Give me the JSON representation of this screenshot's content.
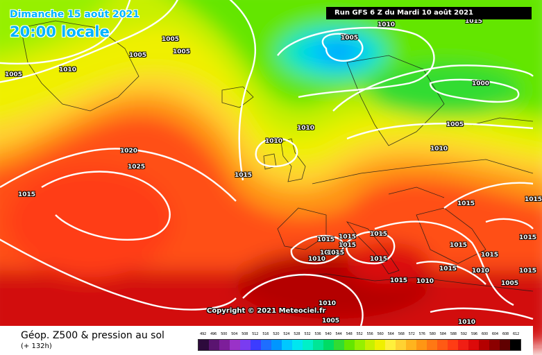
{
  "header": {
    "date": "Dimanche 15 août 2021",
    "time": "20:00 locale",
    "run": "Run GFS 6 Z du Mardi 10 août 2021"
  },
  "copyright": "Copyright © 2021 Meteociel.fr",
  "footer": {
    "title": "Géop. Z500 & pression au sol",
    "subtitle": "(+ 132h)"
  },
  "isobar_labels": [
    "1010",
    "1015",
    "1005",
    "1005",
    "1005",
    "1005",
    "1010",
    "1005",
    "1010",
    "1000",
    "1010",
    "1005",
    "1015",
    "1020",
    "1025",
    "1010",
    "1015",
    "1015",
    "1015",
    "1015",
    "1015",
    "1015",
    "1015",
    "1015",
    "1015",
    "1015",
    "1010",
    "1015",
    "1015",
    "1015",
    "1010",
    "1015",
    "1015",
    "1010",
    "1005",
    "1010",
    "1010",
    "1005",
    "1015"
  ],
  "scale": {
    "ticks": [
      "492",
      "496",
      "500",
      "504",
      "508",
      "512",
      "516",
      "520",
      "524",
      "528",
      "532",
      "536",
      "540",
      "544",
      "548",
      "552",
      "556",
      "560",
      "564",
      "568",
      "572",
      "576",
      "580",
      "584",
      "588",
      "592",
      "596",
      "600",
      "604",
      "608",
      "612"
    ],
    "colors": [
      "#2d0a3c",
      "#5a1470",
      "#7d1e9a",
      "#9a32c8",
      "#7a3cf0",
      "#3c3cff",
      "#1e6eff",
      "#0096ff",
      "#00c8ff",
      "#00e6f0",
      "#00f0c8",
      "#00e696",
      "#00dc64",
      "#32dc32",
      "#64e600",
      "#96f000",
      "#c8f000",
      "#f0f000",
      "#fff03c",
      "#ffd232",
      "#ffb41e",
      "#ff9614",
      "#ff7814",
      "#ff5a14",
      "#ff3c14",
      "#f01e14",
      "#dc0a0a",
      "#b40000",
      "#8c0000",
      "#600000",
      "#000000"
    ]
  }
}
